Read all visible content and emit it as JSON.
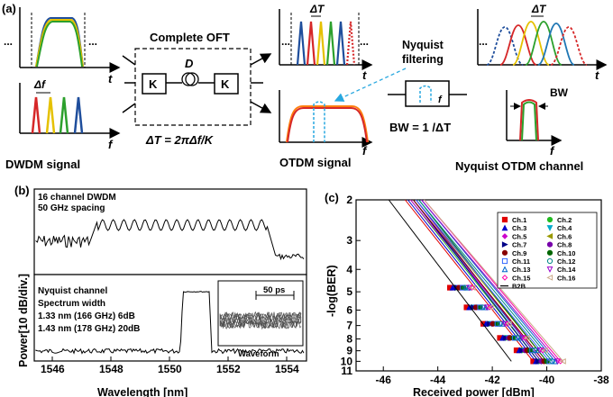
{
  "panel_a": {
    "label": "(a)",
    "t_axis": "t",
    "f_axis": "f",
    "ellipsis": "...",
    "delta_f": "Δf",
    "delta_T": "ΔT",
    "oft_title": "Complete OFT",
    "oft_k": "K",
    "oft_d": "D",
    "oft_eq": "ΔT = 2πΔf/K",
    "dwdm_caption": "DWDM signal",
    "otdm_caption": "OTDM signal",
    "nyq_filter_l1": "Nyquist",
    "nyq_filter_l2": "filtering",
    "bw_eq": "BW = 1 /ΔT",
    "bw": "BW",
    "nyq_caption": "Nyquist OTDM channel",
    "colors": [
      "#1f4e9c",
      "#d62728",
      "#2ca02c",
      "#e5c100",
      "#1f77b4",
      "#ff7f0e",
      "#00a000",
      "#0033cc"
    ]
  },
  "panel_b": {
    "label": "(b)",
    "top_text_1": "16 channel DWDM",
    "top_text_2": "50 GHz spacing",
    "bot_text_1": "Nyquist channel",
    "bot_text_2": "Spectrum width",
    "bot_text_3": "1.33 nm (166 GHz) 6dB",
    "bot_text_4": "1.43 nm (178 GHz) 20dB",
    "inset_scale": "50 ps",
    "inset_label": "Waveform",
    "ylabel": "Power[10 dB/div.]",
    "xlabel": "Wavelength [nm]",
    "xticks": [
      "1546",
      "1548",
      "1550",
      "1552",
      "1554"
    ]
  },
  "panel_c": {
    "label": "(c)",
    "ylabel": "-log(BER)",
    "xlabel": "Received power [dBm]",
    "yticks": [
      "2",
      "3",
      "4",
      "5",
      "6",
      "7",
      "8",
      "9",
      "10",
      "11"
    ],
    "xticks": [
      "-46",
      "-44",
      "-42",
      "-40",
      "-38"
    ]
  },
  "chart_data": [
    {
      "type": "line",
      "panel": "(c)",
      "xlabel": "Received power [dBm]",
      "ylabel": "-log(BER)",
      "xlim": [
        -47,
        -38
      ],
      "ylim": [
        2,
        11
      ],
      "legend_position": "top-right",
      "series": [
        {
          "name": "Ch.1",
          "color": "#e00000",
          "marker": "square",
          "x": [
            -45.2,
            -40.5
          ],
          "y": [
            2,
            10
          ]
        },
        {
          "name": "Ch.2",
          "color": "#22bb22",
          "marker": "circle",
          "x": [
            -45.0,
            -40.3
          ],
          "y": [
            2,
            10
          ]
        },
        {
          "name": "Ch.3",
          "color": "#0000cc",
          "marker": "triangle",
          "x": [
            -45.1,
            -40.4
          ],
          "y": [
            2,
            10
          ]
        },
        {
          "name": "Ch.4",
          "color": "#00aacc",
          "marker": "tri-down",
          "x": [
            -44.9,
            -40.2
          ],
          "y": [
            2,
            10
          ]
        },
        {
          "name": "Ch.5",
          "color": "#cc00cc",
          "marker": "diamond",
          "x": [
            -45.0,
            -40.1
          ],
          "y": [
            2,
            10
          ]
        },
        {
          "name": "Ch.6",
          "color": "#999900",
          "marker": "tri-left",
          "x": [
            -44.8,
            -40.0
          ],
          "y": [
            2,
            10
          ]
        },
        {
          "name": "Ch.7",
          "color": "#000088",
          "marker": "tri-right",
          "x": [
            -44.9,
            -40.3
          ],
          "y": [
            2,
            10
          ]
        },
        {
          "name": "Ch.8",
          "color": "#7700aa",
          "marker": "hexagon",
          "x": [
            -44.8,
            -40.2
          ],
          "y": [
            2,
            10
          ]
        },
        {
          "name": "Ch.9",
          "color": "#880000",
          "marker": "star",
          "x": [
            -44.9,
            -40.1
          ],
          "y": [
            2,
            10
          ]
        },
        {
          "name": "Ch.10",
          "color": "#006600",
          "marker": "pentagon",
          "x": [
            -44.7,
            -40.0
          ],
          "y": [
            2,
            10
          ]
        },
        {
          "name": "Ch.11",
          "color": "#3366ff",
          "marker": "open-square",
          "x": [
            -44.8,
            -39.9
          ],
          "y": [
            2,
            10
          ]
        },
        {
          "name": "Ch.12",
          "color": "#008888",
          "marker": "open-circle",
          "x": [
            -44.7,
            -39.8
          ],
          "y": [
            2,
            10
          ]
        },
        {
          "name": "Ch.13",
          "color": "#0066cc",
          "marker": "open-triangle",
          "x": [
            -44.6,
            -39.7
          ],
          "y": [
            2,
            10
          ]
        },
        {
          "name": "Ch.14",
          "color": "#9900cc",
          "marker": "open-tri-down",
          "x": [
            -44.6,
            -39.6
          ],
          "y": [
            2,
            10
          ]
        },
        {
          "name": "Ch.15",
          "color": "#ff00aa",
          "marker": "open-diamond",
          "x": [
            -44.5,
            -39.5
          ],
          "y": [
            2,
            10
          ]
        },
        {
          "name": "Ch.16",
          "color": "#ccaa88",
          "marker": "open-tri-left",
          "x": [
            -44.5,
            -39.4
          ],
          "y": [
            2,
            10
          ]
        },
        {
          "name": "B2B",
          "color": "#000000",
          "marker": "none",
          "x": [
            -45.8,
            -41.3
          ],
          "y": [
            2,
            10
          ]
        }
      ]
    }
  ]
}
